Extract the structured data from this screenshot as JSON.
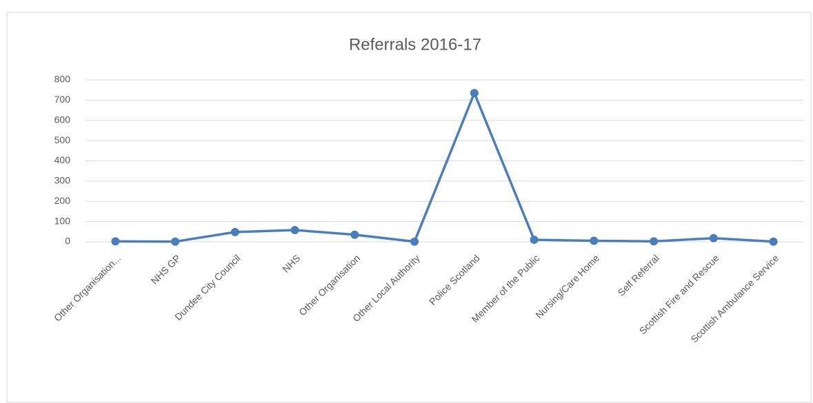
{
  "chart_data": {
    "type": "line",
    "title": "Referrals 2016-17",
    "categories": [
      "Other Organisation...",
      "NHS GP",
      "Dundee City Council",
      "NHS",
      "Other Organisation",
      "Other Local Authority",
      "Police Scotland",
      "Member of the Public",
      "Nursing/Care Home",
      "Self Referral",
      "Scottish Fire and Rescue",
      "Scottish Ambulance Service"
    ],
    "series": [
      {
        "name": "Referrals",
        "color": "#4a7ebb",
        "values": [
          2,
          1,
          48,
          58,
          35,
          1,
          735,
          10,
          5,
          2,
          18,
          1
        ]
      }
    ],
    "ylim": [
      0,
      800
    ],
    "yticks": [
      0,
      100,
      200,
      300,
      400,
      500,
      600,
      700,
      800
    ],
    "grid": true
  }
}
